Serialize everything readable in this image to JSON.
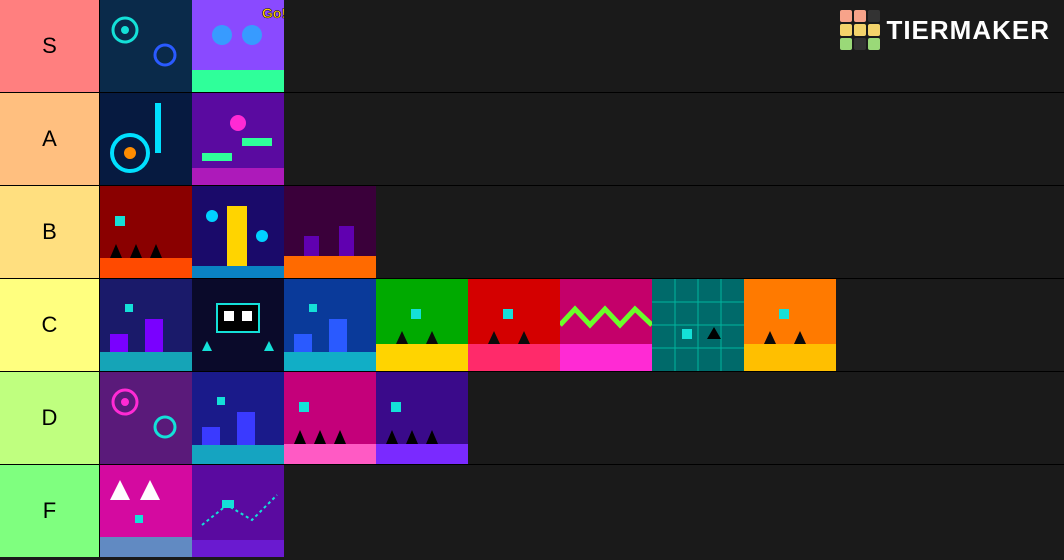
{
  "logo": {
    "text": "TIERMAKER",
    "grid_colors": [
      "#f7a38a",
      "#f7a38a",
      "#333",
      "#f3d36b",
      "#f3d36b",
      "#f3d36b",
      "#9ad978",
      "#333",
      "#9ad978"
    ]
  },
  "tiers": [
    {
      "label": "S",
      "color": "#ff7f7f",
      "items": [
        {
          "name": "level-thumb-1",
          "bg": "#0a2a4a",
          "accent1": "#14e0d8",
          "accent2": "#2a5aff",
          "shapes": "gears"
        },
        {
          "name": "level-thumb-2",
          "bg": "#8a4aff",
          "accent1": "#ffd400",
          "accent2": "#00d2ff",
          "shapes": "go"
        }
      ]
    },
    {
      "label": "A",
      "color": "#ffbf7f",
      "items": [
        {
          "name": "level-thumb-3",
          "bg": "#061a40",
          "accent1": "#00e0ff",
          "accent2": "#ff8c00",
          "shapes": "gear-glow"
        },
        {
          "name": "level-thumb-4",
          "bg": "#5a0aa0",
          "accent1": "#ff2ad4",
          "accent2": "#2fff9a",
          "shapes": "platforms"
        }
      ]
    },
    {
      "label": "B",
      "color": "#ffdf7f",
      "items": [
        {
          "name": "level-thumb-5",
          "bg": "#8a0000",
          "accent1": "#ff4a00",
          "accent2": "#14e0d8",
          "shapes": "spikes"
        },
        {
          "name": "level-thumb-6",
          "bg": "#1a0a6a",
          "accent1": "#ffd400",
          "accent2": "#00d2ff",
          "shapes": "tower"
        },
        {
          "name": "level-thumb-7",
          "bg": "#3a003a",
          "accent1": "#ff6a00",
          "accent2": "#7a00ff",
          "shapes": "lava"
        }
      ]
    },
    {
      "label": "C",
      "color": "#ffff7f",
      "items": [
        {
          "name": "level-thumb-8",
          "bg": "#1a1a6a",
          "accent1": "#14e0d8",
          "accent2": "#7a00ff",
          "shapes": "blocks"
        },
        {
          "name": "level-thumb-9",
          "bg": "#0a0a2a",
          "accent1": "#14e0d8",
          "accent2": "#ffffff",
          "shapes": "deco"
        },
        {
          "name": "level-thumb-10",
          "bg": "#0a3a9a",
          "accent1": "#14e0d8",
          "accent2": "#2a5aff",
          "shapes": "blocks"
        },
        {
          "name": "level-thumb-11",
          "bg": "#00aa00",
          "accent1": "#ffd400",
          "accent2": "#14e0d8",
          "shapes": "ground"
        },
        {
          "name": "level-thumb-12",
          "bg": "#d40000",
          "accent1": "#ff2a6a",
          "accent2": "#14e0d8",
          "shapes": "ground"
        },
        {
          "name": "level-thumb-13",
          "bg": "#c4006a",
          "accent1": "#ff2ad4",
          "accent2": "#6aff2a",
          "shapes": "zigzag"
        },
        {
          "name": "level-thumb-14",
          "bg": "#006a6a",
          "accent1": "#00ffd4",
          "accent2": "#14e0d8",
          "shapes": "grid"
        },
        {
          "name": "level-thumb-15",
          "bg": "#ff7a00",
          "accent1": "#ffbf00",
          "accent2": "#14e0d8",
          "shapes": "ground"
        }
      ]
    },
    {
      "label": "D",
      "color": "#bfff7f",
      "items": [
        {
          "name": "level-thumb-16",
          "bg": "#5a1a7a",
          "accent1": "#ff2ad4",
          "accent2": "#14e0d8",
          "shapes": "gears"
        },
        {
          "name": "level-thumb-17",
          "bg": "#1a1a8a",
          "accent1": "#14e0d8",
          "accent2": "#3a3aff",
          "shapes": "blocks"
        },
        {
          "name": "level-thumb-18",
          "bg": "#c4007a",
          "accent1": "#ff5ac4",
          "accent2": "#14e0d8",
          "shapes": "spikes"
        },
        {
          "name": "level-thumb-19",
          "bg": "#3a0a8a",
          "accent1": "#7a2aff",
          "accent2": "#14e0d8",
          "shapes": "spikes"
        }
      ]
    },
    {
      "label": "F",
      "color": "#7fff7f",
      "items": [
        {
          "name": "level-thumb-20",
          "bg": "#d40aa0",
          "accent1": "#14e0d8",
          "accent2": "#ffffff",
          "shapes": "arrows"
        },
        {
          "name": "level-thumb-21",
          "bg": "#5a0aa0",
          "accent1": "#14e0d8",
          "accent2": "#7a2aff",
          "shapes": "ship"
        }
      ]
    }
  ]
}
